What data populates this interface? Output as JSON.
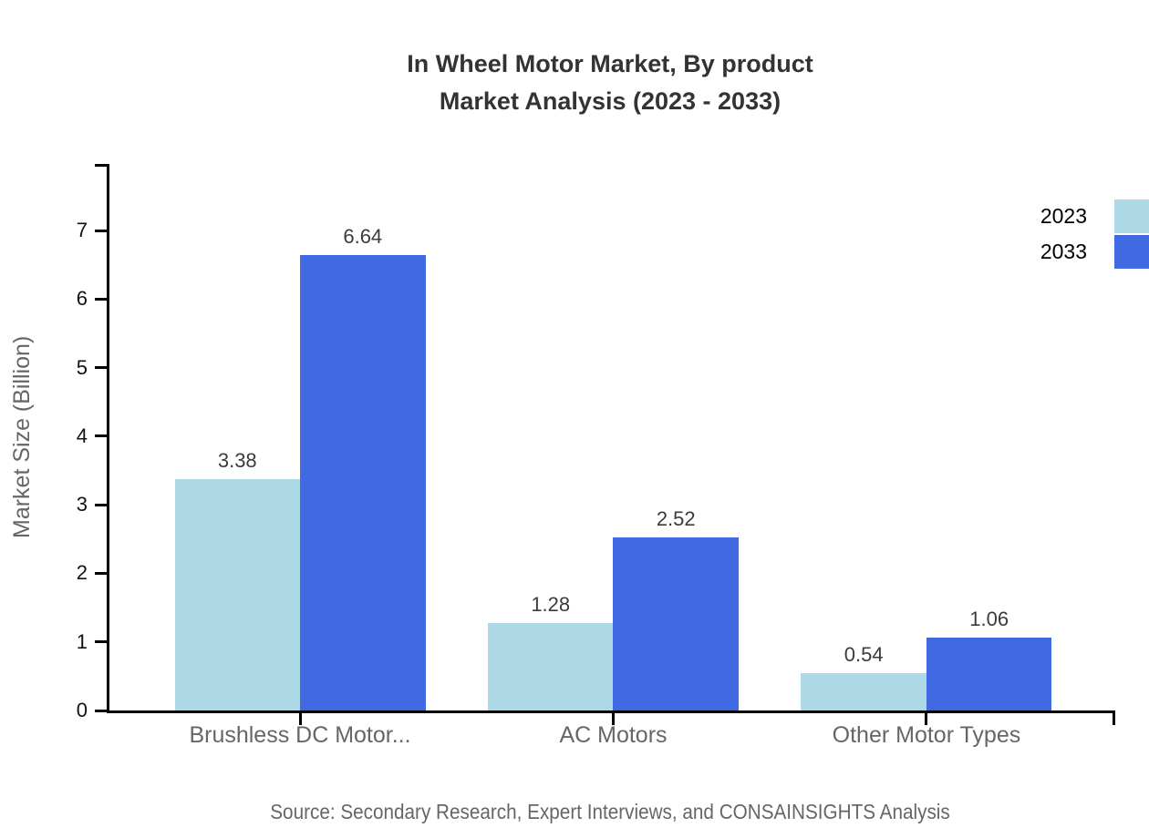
{
  "title": {
    "line1": "In Wheel Motor Market, By product",
    "line2": "Market Analysis (2023 - 2033)"
  },
  "source": "Source: Secondary Research, Expert Interviews, and CONSAINSIGHTS Analysis",
  "chart_data": {
    "type": "bar",
    "categories": [
      "Brushless DC Motor...",
      "AC Motors",
      "Other Motor Types"
    ],
    "series": [
      {
        "name": "2023",
        "color": "#add8e6",
        "values": [
          3.38,
          1.28,
          0.54
        ]
      },
      {
        "name": "2033",
        "color": "#4169e1",
        "values": [
          6.64,
          2.52,
          1.06
        ]
      }
    ],
    "title": "In Wheel Motor Market, By product Market Analysis (2023 - 2033)",
    "xlabel": "",
    "ylabel": "Market Size (Billion)",
    "ylim": [
      0,
      7.97
    ],
    "yticks": [
      0,
      1,
      2,
      3,
      4,
      5,
      6,
      7
    ],
    "grid": false,
    "legend_position": "top-right",
    "value_labels": true,
    "axis_color": "#000000"
  }
}
